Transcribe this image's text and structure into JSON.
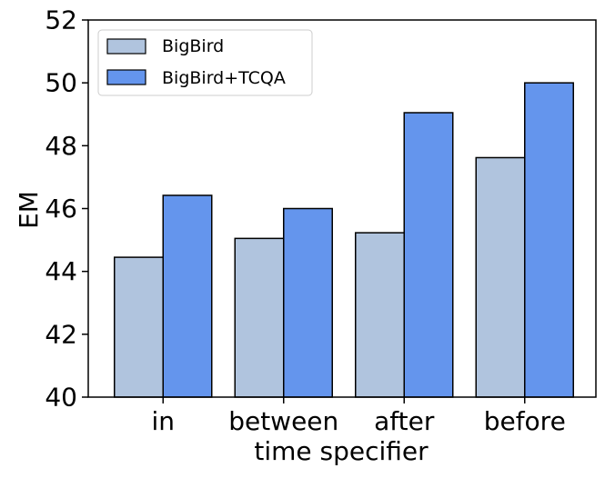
{
  "chart_data": {
    "type": "bar",
    "xlabel": "time specifier",
    "ylabel": "EM",
    "ylim": [
      40,
      52
    ],
    "yticks": [
      40,
      42,
      44,
      46,
      48,
      50,
      52
    ],
    "categories": [
      "in",
      "between",
      "after",
      "before"
    ],
    "series": [
      {
        "name": "BigBird",
        "color": "#b0c4de",
        "values": [
          44.45,
          45.05,
          45.23,
          47.62
        ]
      },
      {
        "name": "BigBird+TCQA",
        "color": "#6495ed",
        "values": [
          46.42,
          46.0,
          49.05,
          50.0
        ]
      }
    ],
    "legend_position": "top-left",
    "grid": false
  }
}
